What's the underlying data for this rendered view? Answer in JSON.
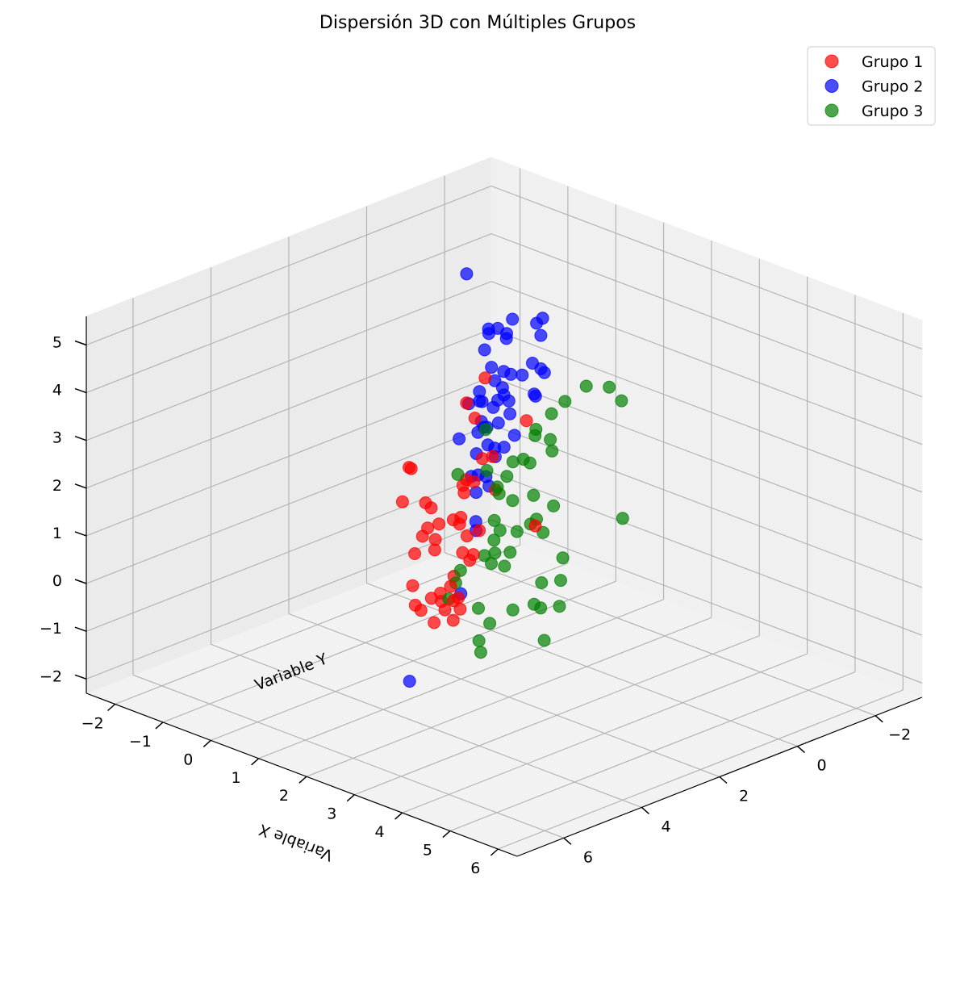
{
  "chart_data": {
    "type": "scatter",
    "subtype": "3d",
    "title": "Dispersión 3D con Múltiples Grupos",
    "xlabel": "Variable X",
    "ylabel": "Variable Y",
    "zlabel": "",
    "xlim": [
      -2.6,
      6.4
    ],
    "ylim": [
      -3.2,
      7.2
    ],
    "zlim": [
      -2.3,
      5.6
    ],
    "xticks": [
      -2,
      -1,
      0,
      1,
      2,
      3,
      4,
      5,
      6
    ],
    "yticks": [
      -2,
      0,
      2,
      4,
      6
    ],
    "zticks": [
      -2,
      -1,
      0,
      1,
      2,
      3,
      4,
      5
    ],
    "grid": true,
    "legend": "top-right",
    "series": [
      {
        "name": "Grupo 1",
        "color": "#ff0000",
        "points": [
          [
            1.5,
            2.0,
            4.2
          ],
          [
            0.8,
            1.4,
            2.9
          ],
          [
            1.9,
            2.3,
            2.8
          ],
          [
            0.9,
            0.2,
            2.5
          ],
          [
            1.2,
            1.7,
            2.3
          ],
          [
            1.6,
            2.6,
            2.3
          ],
          [
            2.0,
            2.9,
            2.5
          ],
          [
            0.4,
            2.6,
            2.1
          ],
          [
            1.8,
            2.1,
            2.0
          ],
          [
            0.2,
            2.3,
            1.9
          ],
          [
            0.9,
            1.8,
            1.5
          ],
          [
            1.4,
            2.5,
            1.4
          ],
          [
            2.4,
            3.5,
            1.2
          ],
          [
            1.7,
            2.9,
            1.5
          ],
          [
            2.1,
            3.2,
            1.5
          ],
          [
            0.7,
            2.4,
            1.3
          ],
          [
            0.5,
            2.3,
            1.3
          ],
          [
            1.0,
            2.2,
            1.1
          ],
          [
            1.6,
            3.4,
            1.3
          ],
          [
            2.8,
            3.9,
            1.6
          ],
          [
            0.3,
            1.0,
            2.9
          ],
          [
            1.6,
            2.7,
            0.8
          ],
          [
            0.1,
            2.4,
            1.2
          ],
          [
            0.7,
            2.2,
            0.9
          ],
          [
            0.6,
            2.5,
            0.7
          ],
          [
            1.1,
            2.8,
            0.7
          ],
          [
            2.0,
            3.5,
            0.5
          ],
          [
            0.3,
            2.0,
            0.6
          ],
          [
            0.6,
            2.7,
            0.4
          ],
          [
            1.5,
            2.8,
            0.3
          ],
          [
            1.9,
            3.3,
            0.1
          ],
          [
            1.3,
            2.9,
            -0.1
          ],
          [
            1.4,
            3.0,
            -0.2
          ],
          [
            2.2,
            3.5,
            0.1
          ],
          [
            1.8,
            3.4,
            -0.1
          ],
          [
            0.8,
            3.0,
            -0.1
          ],
          [
            1.1,
            3.3,
            -0.3
          ],
          [
            1.3,
            3.4,
            -0.3
          ],
          [
            1.9,
            3.8,
            -0.2
          ],
          [
            2.3,
            3.8,
            0.0
          ],
          [
            1.6,
            3.5,
            0.1
          ],
          [
            2.0,
            3.3,
            0.2
          ],
          [
            1.2,
            2.2,
            1.9
          ],
          [
            2.6,
            3.5,
            1.9
          ],
          [
            3.2,
            2.8,
            2.0
          ]
        ]
      },
      {
        "name": "Grupo 2",
        "color": "#0000ff",
        "points": [
          [
            1.2,
            0.2,
            4.4
          ],
          [
            1.6,
            0.8,
            5.0
          ],
          [
            1.4,
            0.4,
            4.9
          ],
          [
            1.3,
            1.2,
            4.8
          ],
          [
            -1.0,
            -0.6,
            4.6
          ],
          [
            0.2,
            -0.3,
            4.2
          ],
          [
            2.2,
            1.6,
            4.0
          ],
          [
            0.4,
            0.1,
            4.0
          ],
          [
            1.6,
            0.6,
            3.9
          ],
          [
            1.2,
            0.2,
            3.7
          ],
          [
            1.3,
            0.8,
            3.8
          ],
          [
            0.9,
            0.6,
            3.6
          ],
          [
            0.7,
            -0.2,
            3.5
          ],
          [
            1.0,
            0.9,
            3.3
          ],
          [
            0.4,
            0.2,
            3.0
          ],
          [
            0.3,
            0.6,
            2.8
          ],
          [
            -0.3,
            -0.2,
            3.4
          ],
          [
            -0.7,
            -0.8,
            3.4
          ],
          [
            -1.0,
            -1.4,
            3.2
          ],
          [
            0.1,
            -0.2,
            3.1
          ],
          [
            -0.4,
            -0.5,
            2.9
          ],
          [
            0.0,
            0.3,
            2.8
          ],
          [
            0.3,
            0.2,
            2.7
          ],
          [
            0.0,
            0.3,
            2.6
          ],
          [
            0.7,
            1.2,
            2.5
          ],
          [
            0.5,
            0.8,
            2.4
          ],
          [
            0.4,
            0.6,
            2.3
          ],
          [
            1.6,
            2.3,
            2.3
          ],
          [
            1.6,
            2.1,
            2.2
          ],
          [
            -0.2,
            -0.3,
            2.2
          ],
          [
            0.5,
            0.7,
            2.0
          ],
          [
            0.9,
            1.0,
            2.0
          ],
          [
            1.5,
            1.9,
            1.9
          ],
          [
            0.4,
            0.4,
            1.8
          ],
          [
            -0.7,
            -2.0,
            1.7
          ],
          [
            -0.5,
            -0.8,
            1.6
          ],
          [
            0.1,
            0.5,
            1.6
          ],
          [
            0.4,
            1.0,
            1.4
          ],
          [
            -0.3,
            -0.7,
            1.2
          ],
          [
            -1.5,
            -2.3,
            1.2
          ],
          [
            -2.2,
            -2.8,
            1.2
          ],
          [
            -2.5,
            -2.5,
            0.7
          ],
          [
            0.5,
            1.0,
            1.1
          ],
          [
            0.9,
            1.5,
            0.8
          ],
          [
            0.5,
            1.0,
            0.3
          ],
          [
            -0.1,
            0.7,
            1.9
          ],
          [
            -1.6,
            -1.9,
            2.8
          ],
          [
            0.8,
            0.5,
            2.7
          ],
          [
            1.3,
            1.0,
            2.6
          ],
          [
            -2.4,
            -2.7,
            0.3
          ],
          [
            1.4,
            2.5,
            -0.2
          ],
          [
            0.9,
            3.2,
            -2.0
          ]
        ]
      },
      {
        "name": "Grupo 3",
        "color": "#008000",
        "points": [
          [
            2.8,
            1.0,
            4.2
          ],
          [
            3.2,
            0.9,
            4.3
          ],
          [
            3.7,
            1.2,
            4.3
          ],
          [
            2.6,
            1.3,
            3.9
          ],
          [
            2.4,
            1.4,
            3.6
          ],
          [
            2.4,
            1.8,
            3.4
          ],
          [
            2.7,
            1.8,
            3.3
          ],
          [
            2.3,
            1.7,
            3.2
          ],
          [
            2.9,
            2.0,
            3.2
          ],
          [
            2.6,
            2.2,
            2.9
          ],
          [
            2.3,
            2.0,
            2.8
          ],
          [
            2.0,
            1.9,
            2.6
          ],
          [
            2.2,
            2.3,
            2.5
          ],
          [
            3.0,
            2.6,
            2.5
          ],
          [
            3.5,
            2.7,
            2.5
          ],
          [
            4.7,
            2.4,
            2.6
          ],
          [
            2.0,
            2.3,
            2.2
          ],
          [
            2.4,
            2.4,
            2.1
          ],
          [
            2.9,
            2.4,
            1.9
          ],
          [
            3.2,
            2.6,
            1.8
          ],
          [
            2.9,
            2.9,
            1.8
          ],
          [
            2.1,
            2.5,
            1.6
          ],
          [
            2.5,
            3.0,
            1.5
          ],
          [
            3.0,
            3.2,
            1.5
          ],
          [
            2.3,
            2.6,
            1.5
          ],
          [
            2.6,
            3.1,
            1.3
          ],
          [
            2.3,
            3.0,
            1.1
          ],
          [
            2.8,
            3.1,
            1.1
          ],
          [
            4.1,
            3.2,
            1.8
          ],
          [
            4.3,
            3.5,
            1.5
          ],
          [
            3.9,
            3.5,
            1.3
          ],
          [
            4.6,
            3.9,
            1.2
          ],
          [
            2.2,
            2.7,
            0.8
          ],
          [
            3.8,
            3.4,
            0.7
          ],
          [
            3.5,
            3.2,
            0.6
          ],
          [
            4.2,
            3.8,
            0.3
          ],
          [
            3.3,
            3.5,
            0.5
          ],
          [
            2.9,
            3.6,
            0.1
          ],
          [
            2.5,
            3.4,
            0.2
          ],
          [
            1.8,
            3.0,
            0.6
          ],
          [
            1.7,
            3.0,
            0.3
          ],
          [
            3.0,
            4.0,
            -0.1
          ],
          [
            3.2,
            4.2,
            -0.2
          ],
          [
            1.8,
            3.3,
            0.1
          ],
          [
            2.2,
            2.5,
            2.2
          ],
          [
            1.5,
            2.7,
            2.4
          ],
          [
            2.0,
            2.6,
            3.5
          ],
          [
            3.1,
            2.8,
            2.0
          ],
          [
            1.7,
            2.2,
            2.4
          ]
        ]
      }
    ]
  }
}
